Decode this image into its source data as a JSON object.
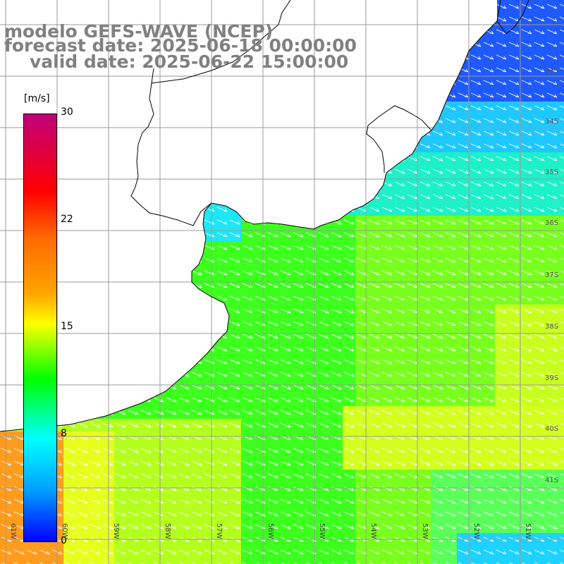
{
  "title": {
    "line1": "modelo GEFS-WAVE (NCEP)",
    "line2": "forecast date: 2025-06-18 00:00:00",
    "line3": "valid date: 2025-06-22 15:00:00"
  },
  "legend": {
    "unit": "[m/s]",
    "ticks": [
      "30",
      "22",
      "15",
      "8",
      "0"
    ],
    "colors": [
      "#c0007a",
      "#ff0000",
      "#ff6a00",
      "#ffa500",
      "#ffff00",
      "#00ff00",
      "#00ffff",
      "#00a0ff",
      "#0000ff"
    ]
  },
  "axes": {
    "lon_labels": [
      "61W",
      "60W",
      "59W",
      "58W",
      "57W",
      "56W",
      "55W",
      "54W",
      "53W",
      "52W",
      "51W"
    ],
    "lat_labels": [
      "33S",
      "34S",
      "35S",
      "36S",
      "37S",
      "38S",
      "39S",
      "40S",
      "41S"
    ]
  },
  "map": {
    "land_color": "#ffffff",
    "grid_color": "#9a9a9a",
    "coast_color": "#000000",
    "wind_direction": "from west-northwest toward east-southeast",
    "arrow_color": "#ffffff"
  }
}
